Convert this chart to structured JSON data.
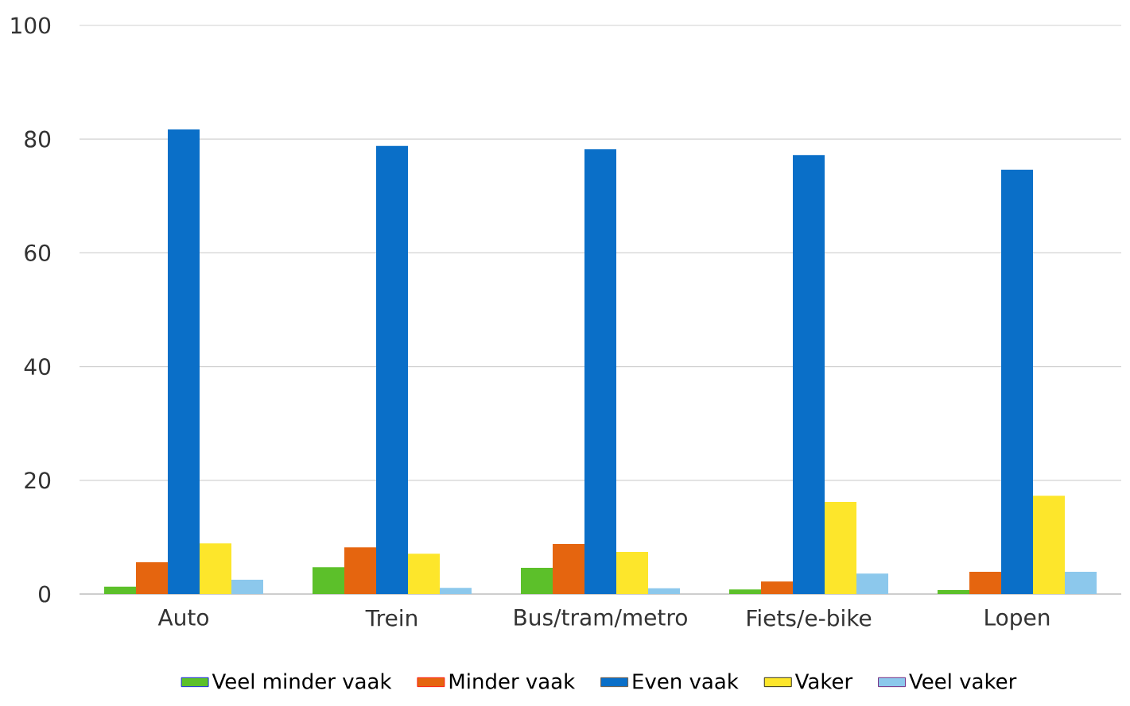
{
  "chart_data": {
    "type": "bar",
    "categories": [
      "Auto",
      "Trein",
      "Bus/tram/metro",
      "Fiets/e-bike",
      "Lopen"
    ],
    "series": [
      {
        "name": "Veel minder vaak",
        "color": "#5cc02a",
        "values": [
          1.3,
          4.7,
          4.6,
          0.8,
          0.7
        ]
      },
      {
        "name": "Minder vaak",
        "color": "#e5650f",
        "values": [
          5.6,
          8.2,
          8.8,
          2.2,
          3.9
        ]
      },
      {
        "name": "Even vaak",
        "color": "#0a6fc8",
        "values": [
          81.7,
          78.8,
          78.2,
          77.2,
          74.6
        ]
      },
      {
        "name": "Vaker",
        "color": "#fde62b",
        "values": [
          8.9,
          7.1,
          7.4,
          16.2,
          17.3
        ]
      },
      {
        "name": "Veel vaker",
        "color": "#8cc8ec",
        "values": [
          2.5,
          1.1,
          1.0,
          3.6,
          3.9
        ]
      }
    ],
    "ylim": [
      0,
      100
    ],
    "yticks": [
      0,
      20,
      40,
      60,
      80,
      100
    ],
    "grid": "y",
    "legend": "bottom"
  }
}
